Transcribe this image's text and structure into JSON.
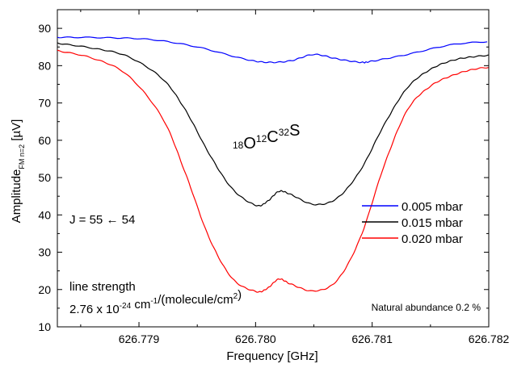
{
  "chart_data": {
    "type": "line",
    "xlabel": "Frequency [GHz]",
    "ylabel": {
      "main": "Amplitude",
      "subscript": "FM n=2",
      "unit": " [µV]"
    },
    "xlim": [
      626.7783,
      626.782
    ],
    "ylim": [
      10,
      95
    ],
    "xticks": [
      626.779,
      626.78,
      626.781,
      626.782
    ],
    "xtick_labels": [
      "626.779",
      "626.780",
      "626.781",
      "626.782"
    ],
    "yticks": [
      10,
      20,
      30,
      40,
      50,
      60,
      70,
      80,
      90
    ],
    "ytick_labels": [
      "10",
      "20",
      "30",
      "40",
      "50",
      "60",
      "70",
      "80",
      "90"
    ],
    "grid": false,
    "legend_position": "right",
    "series": [
      {
        "name": "0.005 mbar",
        "color": "#0000ff",
        "x": [
          626.7783,
          626.7787,
          626.7791,
          626.7795,
          626.7799,
          626.7801,
          626.7803,
          626.7805,
          626.7807,
          626.7809,
          626.781,
          626.7813,
          626.7817,
          626.7821
        ],
        "y": [
          87.6,
          87.5,
          87.0,
          85.0,
          81.8,
          80.9,
          81.3,
          83.0,
          81.8,
          80.9,
          81.2,
          83.0,
          85.7,
          86.6
        ]
      },
      {
        "name": "0.015 mbar",
        "color": "#000000",
        "x": [
          626.7783,
          626.7786,
          626.7789,
          626.7792,
          626.7794,
          626.7796,
          626.7798,
          626.78,
          626.7801,
          626.7802,
          626.7803,
          626.7805,
          626.7807,
          626.7809,
          626.7811,
          626.7813,
          626.7815,
          626.7817,
          626.7819,
          626.7821
        ],
        "y": [
          86.0,
          84.7,
          82.5,
          76.5,
          68.0,
          56.5,
          47.0,
          42.6,
          43.6,
          46.3,
          45.5,
          42.8,
          44.5,
          52.0,
          64.0,
          74.0,
          79.0,
          81.5,
          82.5,
          83.0
        ]
      },
      {
        "name": "0.020 mbar",
        "color": "#ff0000",
        "x": [
          626.7783,
          626.7786,
          626.7789,
          626.7792,
          626.7794,
          626.7796,
          626.7798,
          626.78,
          626.7801,
          626.7802,
          626.7803,
          626.7805,
          626.7807,
          626.7809,
          626.7811,
          626.7813,
          626.7815,
          626.7817,
          626.7819,
          626.7821
        ],
        "y": [
          84.0,
          82.0,
          77.5,
          66.0,
          51.0,
          34.0,
          23.0,
          19.5,
          20.3,
          22.8,
          21.5,
          19.6,
          22.5,
          34.0,
          53.0,
          68.0,
          74.5,
          77.5,
          79.2,
          79.7
        ]
      }
    ],
    "annotations": {
      "molecule": [
        {
          "text": "18",
          "sup": true
        },
        {
          "text": "O",
          "sup": false
        },
        {
          "text": "12",
          "sup": true
        },
        {
          "text": "C",
          "sup": false
        },
        {
          "text": "32",
          "sup": true
        },
        {
          "text": "S",
          "sup": false
        }
      ],
      "transition": "J = 55 ← 54",
      "line_strength_label": "line strength",
      "line_strength_value": [
        {
          "text": "2.76 x 10",
          "sup": false
        },
        {
          "text": "-24",
          "sup": true
        },
        {
          "text": " cm",
          "sup": false
        },
        {
          "text": "-1",
          "sup": true
        },
        {
          "text": "/(molecule/cm",
          "sup": false
        },
        {
          "text": "2",
          "sup": true
        },
        {
          "text": ")",
          "sup": false
        }
      ],
      "abundance": "Natural abundance 0.2 %"
    }
  }
}
